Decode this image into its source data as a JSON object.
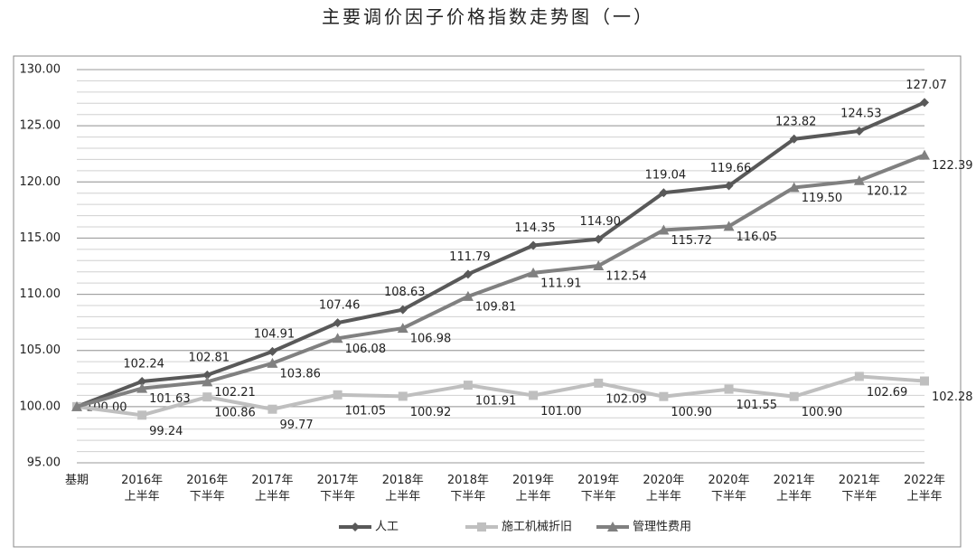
{
  "chart_data": {
    "type": "line",
    "title": "主要调价因子价格指数走势图（一）",
    "categories": [
      "基期",
      "2016年\n上半年",
      "2016年\n下半年",
      "2017年\n上半年",
      "2017年\n下半年",
      "2018年\n上半年",
      "2018年\n下半年",
      "2019年\n上半年",
      "2019年\n下半年",
      "2020年\n上半年",
      "2020年\n下半年",
      "2021年\n上半年",
      "2021年\n下半年",
      "2022年\n上半年"
    ],
    "series": [
      {
        "name": "人工",
        "color": "#595959",
        "marker": "diamond",
        "values": [
          100.0,
          102.24,
          102.81,
          104.91,
          107.46,
          108.63,
          111.79,
          114.35,
          114.9,
          119.04,
          119.66,
          123.82,
          124.53,
          127.07
        ],
        "value_labels": [
          "100.00",
          "102.24",
          "102.81",
          "104.91",
          "107.46",
          "108.63",
          "111.79",
          "114.35",
          "114.90",
          "119.04",
          "119.66",
          "123.82",
          "124.53",
          "127.07"
        ]
      },
      {
        "name": "施工机械折旧",
        "color": "#bfbfbf",
        "marker": "square",
        "values": [
          100.0,
          99.24,
          100.86,
          99.77,
          101.05,
          100.92,
          101.91,
          101.0,
          102.09,
          100.9,
          101.55,
          100.9,
          102.69,
          102.28
        ],
        "value_labels": [
          null,
          "99.24",
          "100.86",
          "99.77",
          "101.05",
          "100.92",
          "101.91",
          "101.00",
          "102.09",
          "100.90",
          "101.55",
          "100.90",
          "102.69",
          "102.28"
        ]
      },
      {
        "name": "管理性费用",
        "color": "#808080",
        "marker": "triangle",
        "values": [
          100.0,
          101.63,
          102.21,
          103.86,
          106.08,
          106.98,
          109.81,
          111.91,
          112.54,
          115.72,
          116.05,
          119.5,
          120.12,
          122.39
        ],
        "value_labels": [
          null,
          "101.63",
          "102.21",
          "103.86",
          "106.08",
          "106.98",
          "109.81",
          "111.91",
          "112.54",
          "115.72",
          "116.05",
          "119.50",
          "120.12",
          "122.39"
        ]
      }
    ],
    "ylim": [
      95,
      130
    ],
    "yticks": [
      {
        "value": 95,
        "label": "95.00"
      },
      {
        "value": 100,
        "label": "100.00"
      },
      {
        "value": 105,
        "label": "105.00"
      },
      {
        "value": 110,
        "label": "110.00"
      },
      {
        "value": 115,
        "label": "115.00"
      },
      {
        "value": 120,
        "label": "120.00"
      },
      {
        "value": 125,
        "label": "125.00"
      },
      {
        "value": 130,
        "label": "130.00"
      }
    ],
    "grid": true,
    "minor_grid_step": 1,
    "legend": "bottom"
  }
}
